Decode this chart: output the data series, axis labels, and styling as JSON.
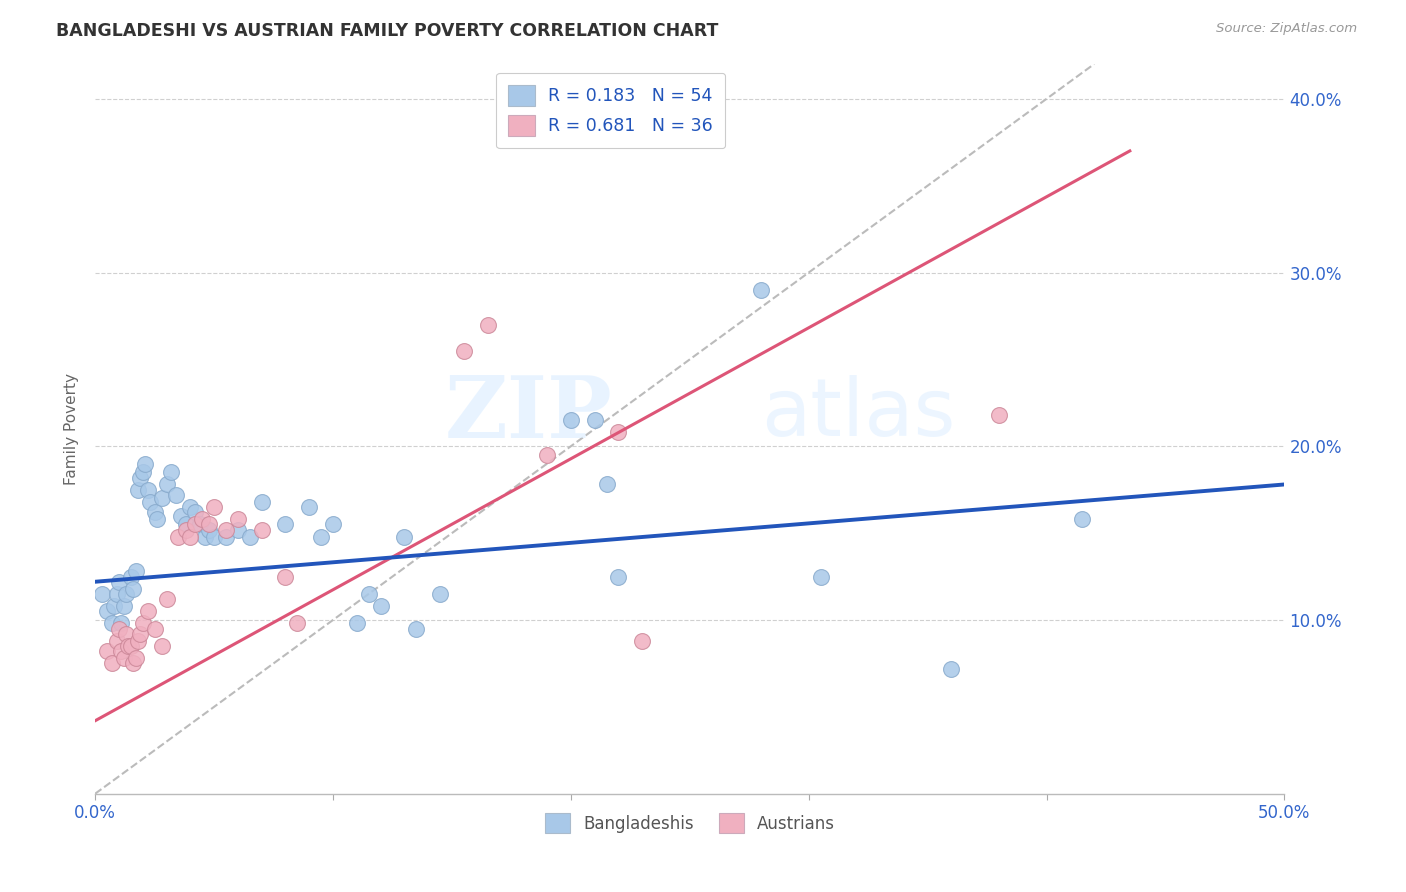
{
  "title": "BANGLADESHI VS AUSTRIAN FAMILY POVERTY CORRELATION CHART",
  "source": "Source: ZipAtlas.com",
  "ylabel": "Family Poverty",
  "xlim": [
    0.0,
    0.5
  ],
  "ylim": [
    0.0,
    0.42
  ],
  "yticks": [
    0.1,
    0.2,
    0.3,
    0.4
  ],
  "ytick_labels": [
    "10.0%",
    "20.0%",
    "30.0%",
    "40.0%"
  ],
  "xticks": [
    0.0,
    0.1,
    0.2,
    0.3,
    0.4,
    0.5
  ],
  "xtick_labels": [
    "0.0%",
    "",
    "",
    "",
    "",
    "50.0%"
  ],
  "background_color": "#ffffff",
  "grid_color": "#d0d0d0",
  "watermark_zip": "ZIP",
  "watermark_atlas": "atlas",
  "bangladeshi_color": "#a8c8e8",
  "bangladeshi_edge": "#88aacc",
  "austrian_color": "#f0b0c0",
  "austrian_edge": "#cc8899",
  "bangladeshi_line_color": "#2255bb",
  "austrian_line_color": "#dd5577",
  "diagonal_color": "#bbbbbb",
  "legend_r1_label": "R = 0.183   N = 54",
  "legend_r2_label": "R = 0.681   N = 36",
  "legend_text_color": "#2255bb",
  "bangladeshi_scatter": [
    [
      0.003,
      0.115
    ],
    [
      0.005,
      0.105
    ],
    [
      0.007,
      0.098
    ],
    [
      0.008,
      0.108
    ],
    [
      0.009,
      0.115
    ],
    [
      0.01,
      0.122
    ],
    [
      0.011,
      0.098
    ],
    [
      0.012,
      0.108
    ],
    [
      0.013,
      0.115
    ],
    [
      0.015,
      0.125
    ],
    [
      0.016,
      0.118
    ],
    [
      0.017,
      0.128
    ],
    [
      0.018,
      0.175
    ],
    [
      0.019,
      0.182
    ],
    [
      0.02,
      0.185
    ],
    [
      0.021,
      0.19
    ],
    [
      0.022,
      0.175
    ],
    [
      0.023,
      0.168
    ],
    [
      0.025,
      0.162
    ],
    [
      0.026,
      0.158
    ],
    [
      0.028,
      0.17
    ],
    [
      0.03,
      0.178
    ],
    [
      0.032,
      0.185
    ],
    [
      0.034,
      0.172
    ],
    [
      0.036,
      0.16
    ],
    [
      0.038,
      0.155
    ],
    [
      0.04,
      0.165
    ],
    [
      0.042,
      0.162
    ],
    [
      0.044,
      0.155
    ],
    [
      0.046,
      0.148
    ],
    [
      0.048,
      0.152
    ],
    [
      0.05,
      0.148
    ],
    [
      0.055,
      0.148
    ],
    [
      0.06,
      0.152
    ],
    [
      0.065,
      0.148
    ],
    [
      0.07,
      0.168
    ],
    [
      0.08,
      0.155
    ],
    [
      0.09,
      0.165
    ],
    [
      0.095,
      0.148
    ],
    [
      0.1,
      0.155
    ],
    [
      0.11,
      0.098
    ],
    [
      0.115,
      0.115
    ],
    [
      0.12,
      0.108
    ],
    [
      0.13,
      0.148
    ],
    [
      0.135,
      0.095
    ],
    [
      0.145,
      0.115
    ],
    [
      0.2,
      0.215
    ],
    [
      0.21,
      0.215
    ],
    [
      0.215,
      0.178
    ],
    [
      0.22,
      0.125
    ],
    [
      0.28,
      0.29
    ],
    [
      0.305,
      0.125
    ],
    [
      0.36,
      0.072
    ],
    [
      0.415,
      0.158
    ]
  ],
  "austrian_scatter": [
    [
      0.005,
      0.082
    ],
    [
      0.007,
      0.075
    ],
    [
      0.009,
      0.088
    ],
    [
      0.01,
      0.095
    ],
    [
      0.011,
      0.082
    ],
    [
      0.012,
      0.078
    ],
    [
      0.013,
      0.092
    ],
    [
      0.014,
      0.085
    ],
    [
      0.015,
      0.085
    ],
    [
      0.016,
      0.075
    ],
    [
      0.017,
      0.078
    ],
    [
      0.018,
      0.088
    ],
    [
      0.019,
      0.092
    ],
    [
      0.02,
      0.098
    ],
    [
      0.022,
      0.105
    ],
    [
      0.025,
      0.095
    ],
    [
      0.028,
      0.085
    ],
    [
      0.03,
      0.112
    ],
    [
      0.035,
      0.148
    ],
    [
      0.038,
      0.152
    ],
    [
      0.04,
      0.148
    ],
    [
      0.042,
      0.155
    ],
    [
      0.045,
      0.158
    ],
    [
      0.048,
      0.155
    ],
    [
      0.05,
      0.165
    ],
    [
      0.055,
      0.152
    ],
    [
      0.06,
      0.158
    ],
    [
      0.07,
      0.152
    ],
    [
      0.08,
      0.125
    ],
    [
      0.085,
      0.098
    ],
    [
      0.155,
      0.255
    ],
    [
      0.165,
      0.27
    ],
    [
      0.19,
      0.195
    ],
    [
      0.22,
      0.208
    ],
    [
      0.23,
      0.088
    ],
    [
      0.38,
      0.218
    ]
  ],
  "bangladeshi_line": [
    [
      0.0,
      0.122
    ],
    [
      0.5,
      0.178
    ]
  ],
  "austrian_line": [
    [
      0.0,
      0.042
    ],
    [
      0.435,
      0.37
    ]
  ],
  "diagonal_line": [
    [
      0.0,
      0.0
    ],
    [
      0.42,
      0.42
    ]
  ]
}
